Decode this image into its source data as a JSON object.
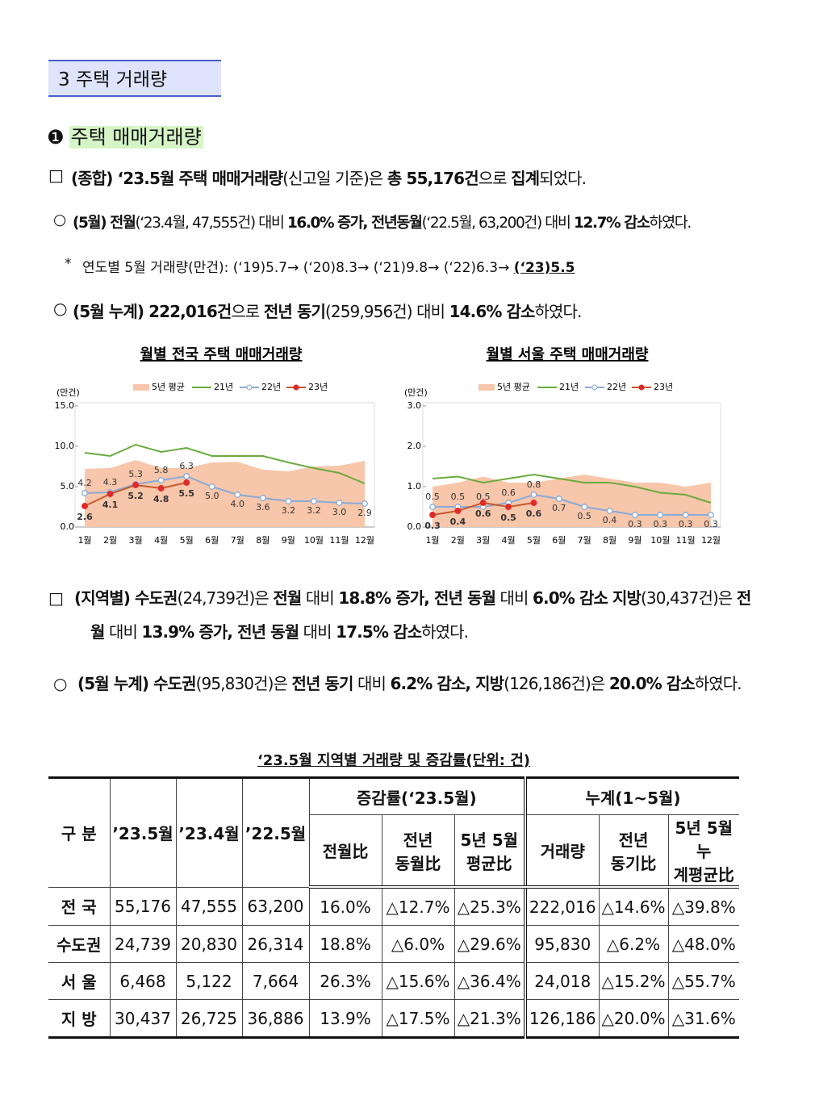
{
  "header": {
    "title": "3 주택 거래량"
  },
  "section": {
    "number": "❶",
    "title": "주택 매매거래량"
  },
  "paragraphs": [
    {
      "marker": "□",
      "segments": [
        {
          "text": "(종합)",
          "bold": true
        },
        {
          "text": " ‘23.5월 주택 매매거래량",
          "bold": true
        },
        {
          "text": "(신고일 기준)은 "
        },
        {
          "text": "총 55,176건",
          "bold": true
        },
        {
          "text": "으로 "
        },
        {
          "text": "집계",
          "bold": true
        },
        {
          "text": "되었다."
        }
      ]
    },
    {
      "marker": "○",
      "segments": [
        {
          "text": "(5월) 전월",
          "bold": true
        },
        {
          "text": "(‘23.4월, 47,555건) 대비 "
        },
        {
          "text": "16.0% 증가, 전년동월",
          "bold": true
        },
        {
          "text": "(‘22.5월, 63,200건) 대비 "
        },
        {
          "text": "12.7% 감소",
          "bold": true
        },
        {
          "text": "하였다."
        }
      ]
    },
    {
      "marker": "*",
      "segments": [
        {
          "text": "연도별 5월 거래량(만건): (‘19)5.7→ (‘20)8.3→ (‘21)9.8→ (‘22)6.3→ "
        },
        {
          "text": "(‘23)5.5",
          "bold": true,
          "underline": true
        }
      ]
    },
    {
      "marker": "○",
      "segments": [
        {
          "text": "(5월 누계) 222,016건",
          "bold": true
        },
        {
          "text": "으로 "
        },
        {
          "text": "전년 동기",
          "bold": true
        },
        {
          "text": "(259,956건) 대비 "
        },
        {
          "text": "14.6% 감소",
          "bold": true
        },
        {
          "text": "하였다."
        }
      ]
    },
    {
      "marker": "□",
      "segments": [
        {
          "text": "(지역별) 수도권",
          "bold": true
        },
        {
          "text": "(24,739건)은 "
        },
        {
          "text": "전월",
          "bold": true
        },
        {
          "text": " 대비 "
        },
        {
          "text": "18.8% 증가, 전년 동월",
          "bold": true
        },
        {
          "text": " 대비 "
        },
        {
          "text": "6.0% 감소 지방",
          "bold": true
        },
        {
          "text": "(30,437건)은 "
        },
        {
          "text": "전월",
          "bold": true
        },
        {
          "text": " 대비 "
        },
        {
          "text": "13.9% 증가, 전년 동월",
          "bold": true
        },
        {
          "text": " 대비 "
        },
        {
          "text": "17.5% 감소",
          "bold": true
        },
        {
          "text": "하였다."
        }
      ]
    },
    {
      "marker": "○",
      "segments": [
        {
          "text": "(5월 누계) 수도권",
          "bold": true
        },
        {
          "text": "(95,830건)은 "
        },
        {
          "text": "전년 동기",
          "bold": true
        },
        {
          "text": " 대비 "
        },
        {
          "text": "6.2% 감소, 지방",
          "bold": true
        },
        {
          "text": "(126,186건)은 "
        },
        {
          "text": "20.0% 감소",
          "bold": true
        },
        {
          "text": "하였다."
        }
      ]
    }
  ],
  "chart_data": [
    {
      "type": "line",
      "title": "월별 전국 주택 매매거래량",
      "y_label": "(만건)",
      "categories": [
        "1월",
        "2월",
        "3월",
        "4월",
        "5월",
        "6월",
        "7월",
        "8월",
        "9월",
        "10월",
        "11월",
        "12월"
      ],
      "ylim": [
        0,
        15
      ],
      "yticks": [
        {
          "value": 0,
          "label": "0.0"
        },
        {
          "value": 5,
          "label": "5.0"
        },
        {
          "value": 10,
          "label": "10.0"
        },
        {
          "value": 15,
          "label": "15.0"
        }
      ],
      "series": [
        {
          "name": "5년 평균",
          "color": "#f8c6aa",
          "mark": "area",
          "values": [
            7.2,
            7.3,
            8.3,
            7.3,
            7.3,
            8.0,
            8.1,
            7.1,
            6.9,
            7.5,
            7.6,
            8.2
          ]
        },
        {
          "name": "21년",
          "color": "#6aab3e",
          "values": [
            9.2,
            8.8,
            10.2,
            9.3,
            9.8,
            8.8,
            8.8,
            8.8,
            8.0,
            7.3,
            6.7,
            5.4
          ]
        },
        {
          "name": "22년",
          "color": "#8aaad8",
          "marker": "open",
          "data_labels": true,
          "values": [
            4.2,
            4.3,
            5.3,
            5.8,
            6.3,
            5.0,
            4.0,
            3.6,
            3.2,
            3.2,
            3.0,
            2.9
          ],
          "value_labels": [
            "4.2",
            "4.3",
            "5.3",
            "5.8",
            "6.3",
            "5.0",
            "4.0",
            "3.6",
            "3.2",
            "3.2",
            "3.0",
            "2.9"
          ]
        },
        {
          "name": "23년",
          "color": "#e02a2a",
          "marker": "filled",
          "data_labels": true,
          "values": [
            2.6,
            4.1,
            5.2,
            4.8,
            5.5,
            null,
            null,
            null,
            null,
            null,
            null,
            null
          ]
        }
      ]
    },
    {
      "type": "line",
      "title": "월별 서울 주택 매매거래량",
      "y_label": "(만건)",
      "categories": [
        "1월",
        "2월",
        "3월",
        "4월",
        "5월",
        "6월",
        "7월",
        "8월",
        "9월",
        "10월",
        "11월",
        "12월"
      ],
      "ylim": [
        0,
        3
      ],
      "yticks": [
        {
          "value": 0,
          "label": "0.0"
        },
        {
          "value": 1,
          "label": "1.0"
        },
        {
          "value": 2,
          "label": "2.0"
        },
        {
          "value": 3,
          "label": "3.0"
        }
      ],
      "series": [
        {
          "name": "5년 평균",
          "color": "#f8c6aa",
          "mark": "area",
          "values": [
            1.0,
            1.1,
            1.25,
            1.1,
            1.1,
            1.2,
            1.3,
            1.2,
            1.1,
            1.1,
            1.0,
            1.1
          ]
        },
        {
          "name": "21년",
          "color": "#6aab3e",
          "values": [
            1.2,
            1.25,
            1.1,
            1.2,
            1.3,
            1.2,
            1.1,
            1.1,
            1.0,
            0.85,
            0.8,
            0.6
          ]
        },
        {
          "name": "22년",
          "color": "#8aaad8",
          "marker": "open",
          "data_labels": true,
          "values": [
            0.5,
            0.5,
            0.5,
            0.6,
            0.8,
            0.7,
            0.5,
            0.4,
            0.3,
            0.3,
            0.3,
            0.3
          ]
        },
        {
          "name": "23년",
          "color": "#e02a2a",
          "marker": "filled",
          "data_labels": true,
          "values": [
            0.3,
            0.4,
            0.6,
            0.5,
            0.6,
            null,
            null,
            null,
            null,
            null,
            null,
            null
          ]
        }
      ]
    }
  ],
  "table": {
    "title": "‘23.5월 지역별 거래량 및 증감률(단위: 건)",
    "corner": "구 분",
    "columns": [
      "’23.5월",
      "’23.4월",
      "’22.5월"
    ],
    "groups": [
      {
        "title": "증감률(‘23.5월)",
        "columns": [
          "전월比",
          "전년\n동월比",
          "5년 5월\n평균比"
        ]
      },
      {
        "title": "누계(1~5월)",
        "columns": [
          "거래량",
          "전년\n동기比",
          "5년 5월누\n계평균比"
        ]
      }
    ],
    "rows": [
      [
        "전 국",
        "55,176",
        "47,555",
        "63,200",
        "16.0%",
        "△12.7%",
        "△25.3%",
        "222,016",
        "△14.6%",
        "△39.8%"
      ],
      [
        "수도권",
        "24,739",
        "20,830",
        "26,314",
        "18.8%",
        "△6.0%",
        "△29.6%",
        "95,830",
        "△6.2%",
        "△48.0%"
      ],
      [
        "서 울",
        "6,468",
        "5,122",
        "7,664",
        "26.3%",
        "△15.6%",
        "△36.4%",
        "24,018",
        "△15.2%",
        "△55.7%"
      ],
      [
        "지 방",
        "30,437",
        "26,725",
        "36,886",
        "13.9%",
        "△17.5%",
        "△21.3%",
        "126,186",
        "△20.0%",
        "△31.6%"
      ]
    ]
  }
}
